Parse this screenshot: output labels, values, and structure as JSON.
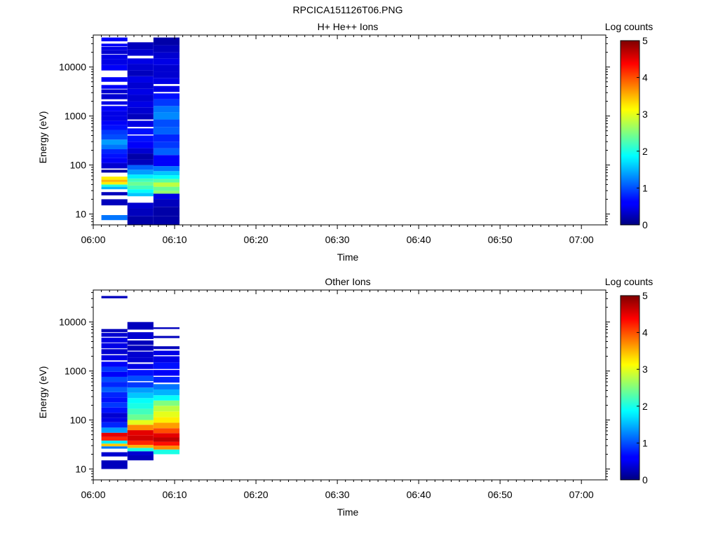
{
  "page_title": "RPCICA151126T06.PNG",
  "chart_data": [
    {
      "type": "heatmap",
      "title": "H+ He++ Ions",
      "xlabel": "Time",
      "ylabel": "Energy (eV)",
      "x_ticks": [
        "06:00",
        "06:10",
        "06:20",
        "06:30",
        "06:40",
        "06:50",
        "07:00"
      ],
      "x_range_minutes": [
        0,
        63
      ],
      "y_scale": "log",
      "y_ticks": [
        "10",
        "100",
        "1000",
        "10000"
      ],
      "y_range": [
        6,
        45000
      ],
      "colorbar": {
        "label": "Log counts",
        "range": [
          0,
          5
        ],
        "ticks": [
          "0",
          "1",
          "2",
          "3",
          "4",
          "5"
        ]
      },
      "columns": [
        {
          "start_min": 1.0,
          "end_min": 4.2,
          "bins": [
            [
              7.5,
              9.5,
              1.2
            ],
            [
              15,
              20,
              0.3
            ],
            [
              24,
              28,
              0.3
            ],
            [
              32,
              36,
              1.5
            ],
            [
              36,
              40,
              2.0
            ],
            [
              40,
              45,
              3.2
            ],
            [
              45,
              50,
              3.5
            ],
            [
              50,
              58,
              3.2
            ],
            [
              70,
              80,
              0.2
            ],
            [
              85,
              110,
              0.4
            ],
            [
              110,
              140,
              0.6
            ],
            [
              140,
              170,
              0.7
            ],
            [
              170,
              210,
              0.8
            ],
            [
              210,
              260,
              1.2
            ],
            [
              260,
              330,
              1.4
            ],
            [
              330,
              420,
              1.0
            ],
            [
              420,
              520,
              0.9
            ],
            [
              520,
              650,
              0.7
            ],
            [
              650,
              800,
              0.6
            ],
            [
              800,
              1000,
              0.5
            ],
            [
              1000,
              1250,
              0.5
            ],
            [
              1250,
              1600,
              0.6
            ],
            [
              1700,
              2000,
              0.5
            ],
            [
              2200,
              2800,
              0.4
            ],
            [
              2900,
              3500,
              0.4
            ],
            [
              3600,
              4300,
              0.6
            ],
            [
              5000,
              6200,
              0.6
            ],
            [
              8500,
              11000,
              0.6
            ],
            [
              11000,
              14500,
              0.5
            ],
            [
              14500,
              18000,
              0.5
            ],
            [
              18500,
              22000,
              0.4
            ],
            [
              22000,
              26000,
              0.5
            ],
            [
              26500,
              30000,
              0.6
            ],
            [
              33500,
              40000,
              0.6
            ]
          ]
        },
        {
          "start_min": 4.2,
          "end_min": 7.4,
          "bins": [
            [
              6,
              9,
              0.2
            ],
            [
              9,
              13,
              0.3
            ],
            [
              13,
              17,
              0.4
            ],
            [
              23,
              27,
              1.6
            ],
            [
              27,
              32,
              1.9
            ],
            [
              32,
              38,
              2.2
            ],
            [
              38,
              45,
              2.4
            ],
            [
              45,
              53,
              2.2
            ],
            [
              53,
              64,
              1.8
            ],
            [
              64,
              80,
              1.4
            ],
            [
              80,
              100,
              1.1
            ],
            [
              100,
              130,
              0.3
            ],
            [
              130,
              170,
              0.2
            ],
            [
              170,
              220,
              0.4
            ],
            [
              220,
              300,
              0.6
            ],
            [
              300,
              400,
              0.7
            ],
            [
              420,
              560,
              0.7
            ],
            [
              600,
              800,
              0.5
            ],
            [
              850,
              1100,
              0.3
            ],
            [
              1100,
              1500,
              0.4
            ],
            [
              1500,
              2000,
              0.5
            ],
            [
              2000,
              2700,
              0.4
            ],
            [
              2700,
              3600,
              0.5
            ],
            [
              3600,
              4800,
              0.4
            ],
            [
              4800,
              6500,
              0.5
            ],
            [
              6500,
              8500,
              0.3
            ],
            [
              8500,
              11500,
              0.4
            ],
            [
              11500,
              15000,
              0.5
            ],
            [
              17000,
              23000,
              0.4
            ],
            [
              23000,
              32000,
              0.3
            ]
          ]
        },
        {
          "start_min": 7.4,
          "end_min": 10.6,
          "bins": [
            [
              6,
              9,
              0.2
            ],
            [
              9,
              14,
              0.2
            ],
            [
              14,
              20,
              0.3
            ],
            [
              20,
              26,
              0.5
            ],
            [
              26,
              30,
              2.6
            ],
            [
              30,
              36,
              2.4
            ],
            [
              36,
              44,
              2.8
            ],
            [
              44,
              52,
              2.3
            ],
            [
              52,
              62,
              1.9
            ],
            [
              62,
              75,
              1.6
            ],
            [
              75,
              95,
              1.2
            ],
            [
              95,
              120,
              0.6
            ],
            [
              120,
              160,
              0.6
            ],
            [
              160,
              220,
              1.1
            ],
            [
              220,
              300,
              0.9
            ],
            [
              300,
              420,
              0.8
            ],
            [
              420,
              600,
              1.1
            ],
            [
              600,
              850,
              1.0
            ],
            [
              850,
              1200,
              1.3
            ],
            [
              1200,
              1600,
              1.2
            ],
            [
              1600,
              2200,
              0.9
            ],
            [
              2200,
              2900,
              0.7
            ],
            [
              3100,
              4100,
              0.5
            ],
            [
              4500,
              6000,
              0.5
            ],
            [
              6000,
              8000,
              0.4
            ],
            [
              8000,
              11000,
              0.4
            ],
            [
              11000,
              15000,
              0.5
            ],
            [
              15000,
              20000,
              0.4
            ],
            [
              20000,
              28000,
              0.3
            ],
            [
              28000,
              40000,
              0.2
            ]
          ]
        }
      ]
    },
    {
      "type": "heatmap",
      "title": "Other Ions",
      "xlabel": "Time",
      "ylabel": "Energy (eV)",
      "x_ticks": [
        "06:00",
        "06:10",
        "06:20",
        "06:30",
        "06:40",
        "06:50",
        "07:00"
      ],
      "x_range_minutes": [
        0,
        63
      ],
      "y_scale": "log",
      "y_ticks": [
        "10",
        "100",
        "1000",
        "10000"
      ],
      "y_range": [
        6,
        45000
      ],
      "colorbar": {
        "label": "Log counts",
        "range": [
          0,
          5
        ],
        "ticks": [
          "0",
          "1",
          "2",
          "3",
          "4",
          "5"
        ]
      },
      "columns": [
        {
          "start_min": 1.0,
          "end_min": 4.2,
          "bins": [
            [
              10,
              15,
              0.3
            ],
            [
              18,
              22,
              0.4
            ],
            [
              26,
              29,
              1.2
            ],
            [
              29,
              33,
              3.4
            ],
            [
              33,
              38,
              1.8
            ],
            [
              38,
              45,
              4.2
            ],
            [
              45,
              55,
              4.5
            ],
            [
              55,
              70,
              1.4
            ],
            [
              70,
              90,
              0.8
            ],
            [
              90,
              110,
              0.5
            ],
            [
              110,
              140,
              0.4
            ],
            [
              140,
              180,
              0.7
            ],
            [
              180,
              230,
              0.9
            ],
            [
              230,
              290,
              0.7
            ],
            [
              290,
              370,
              0.8
            ],
            [
              370,
              470,
              1.1
            ],
            [
              470,
              600,
              0.8
            ],
            [
              600,
              760,
              1.0
            ],
            [
              760,
              960,
              0.6
            ],
            [
              960,
              1220,
              0.9
            ],
            [
              1220,
              1550,
              0.6
            ],
            [
              1650,
              2100,
              0.5
            ],
            [
              2200,
              2800,
              0.4
            ],
            [
              2900,
              3700,
              0.5
            ],
            [
              3800,
              4800,
              0.5
            ],
            [
              5000,
              6000,
              0.4
            ],
            [
              6200,
              7200,
              0.3
            ],
            [
              30500,
              34000,
              0.3
            ]
          ]
        },
        {
          "start_min": 4.2,
          "end_min": 7.4,
          "bins": [
            [
              15,
              19,
              0.3
            ],
            [
              19,
              23,
              0.4
            ],
            [
              23,
              27,
              2.0
            ],
            [
              27,
              31,
              3.5
            ],
            [
              31,
              38,
              4.2
            ],
            [
              38,
              48,
              4.6
            ],
            [
              48,
              62,
              4.5
            ],
            [
              62,
              80,
              3.7
            ],
            [
              80,
              100,
              3.0
            ],
            [
              100,
              130,
              2.4
            ],
            [
              130,
              170,
              2.2
            ],
            [
              170,
              220,
              2.0
            ],
            [
              220,
              280,
              1.9
            ],
            [
              280,
              360,
              1.6
            ],
            [
              360,
              460,
              1.4
            ],
            [
              460,
              590,
              0.9
            ],
            [
              620,
              800,
              1.0
            ],
            [
              800,
              1050,
              0.7
            ],
            [
              1100,
              1400,
              0.5
            ],
            [
              1500,
              1900,
              0.4
            ],
            [
              1900,
              2500,
              0.4
            ],
            [
              2600,
              3300,
              0.3
            ],
            [
              3400,
              4200,
              0.3
            ],
            [
              4500,
              6200,
              0.4
            ],
            [
              7000,
              10000,
              0.3
            ]
          ]
        },
        {
          "start_min": 7.4,
          "end_min": 10.6,
          "bins": [
            [
              20,
              25,
              2.0
            ],
            [
              25,
              30,
              3.7
            ],
            [
              30,
              36,
              4.3
            ],
            [
              36,
              44,
              4.7
            ],
            [
              44,
              54,
              4.5
            ],
            [
              54,
              68,
              4.0
            ],
            [
              68,
              88,
              3.6
            ],
            [
              88,
              115,
              3.2
            ],
            [
              115,
              150,
              3.0
            ],
            [
              150,
              195,
              2.8
            ],
            [
              195,
              250,
              2.5
            ],
            [
              250,
              320,
              1.9
            ],
            [
              320,
              420,
              1.5
            ],
            [
              420,
              540,
              1.2
            ],
            [
              580,
              760,
              0.8
            ],
            [
              800,
              1050,
              0.6
            ],
            [
              1100,
              1500,
              0.7
            ],
            [
              1500,
              2000,
              0.5
            ],
            [
              2100,
              2600,
              0.5
            ],
            [
              2800,
              3200,
              0.3
            ],
            [
              4700,
              5200,
              0.3
            ],
            [
              7200,
              7800,
              0.3
            ]
          ]
        }
      ]
    }
  ]
}
